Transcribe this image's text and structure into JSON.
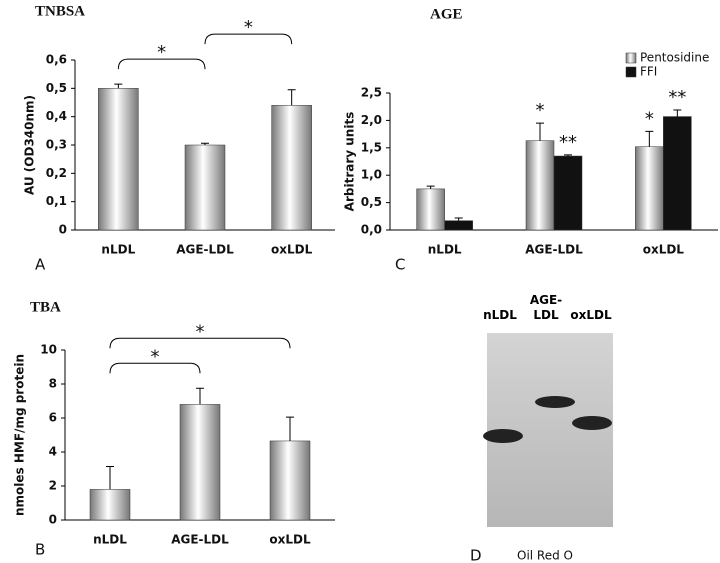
{
  "chart_data": [
    {
      "type": "bar",
      "title": "TNBSA",
      "panel": "A",
      "y_label": "AU (OD340nm)",
      "categories": [
        "nLDL",
        "AGE-LDL",
        "oxLDL"
      ],
      "values": [
        0.5,
        0.3,
        0.44
      ],
      "errors": [
        0.015,
        0.006,
        0.055
      ],
      "color": "#777777",
      "ylim": [
        0,
        0.6
      ],
      "yticks": [
        0,
        {
          "value": 0.1,
          "label": "0,1"
        },
        {
          "value": 0.2,
          "label": "0,2"
        },
        {
          "value": 0.3,
          "label": "0,3"
        },
        {
          "value": 0.4,
          "label": "0,4"
        },
        {
          "value": 0.5,
          "label": "0,5"
        },
        {
          "value": 0.6,
          "label": "0,6"
        }
      ],
      "brackets": [
        {
          "from": 0,
          "to": 1,
          "label": "*"
        },
        {
          "from": 1,
          "to": 2,
          "label": "*"
        }
      ]
    },
    {
      "type": "bar",
      "title": "AGE",
      "panel": "C",
      "y_label": "Arbitrary units",
      "categories": [
        "nLDL",
        "AGE-LDL",
        "oxLDL"
      ],
      "series": [
        {
          "name": "Pentosidine",
          "color": "#777777",
          "values": [
            0.75,
            1.63,
            1.52
          ],
          "errors": [
            0.05,
            0.32,
            0.28
          ],
          "annotations": [
            null,
            "*",
            "*"
          ]
        },
        {
          "name": "FFI",
          "color": "#111111",
          "values": [
            0.17,
            1.35,
            2.07
          ],
          "errors": [
            0.05,
            0.02,
            0.12
          ],
          "annotations": [
            null,
            "**",
            "**"
          ]
        }
      ],
      "legend": "top-right",
      "ylim": [
        0,
        2.5
      ],
      "yticks": [
        {
          "value": 0,
          "label": "0,0"
        },
        {
          "value": 0.5,
          "label": "0,5"
        },
        {
          "value": 1,
          "label": "1,0"
        },
        {
          "value": 1.5,
          "label": "1,5"
        },
        {
          "value": 2,
          "label": "2,0"
        },
        {
          "value": 2.5,
          "label": "2,5"
        }
      ]
    },
    {
      "type": "bar",
      "title": "TBA",
      "panel": "B",
      "y_label": "nmoles HMF/mg protein",
      "categories": [
        "nLDL",
        "AGE-LDL",
        "oxLDL"
      ],
      "values": [
        1.8,
        6.8,
        4.65
      ],
      "errors": [
        1.35,
        0.95,
        1.4
      ],
      "color": "#777777",
      "ylim": [
        0,
        10
      ],
      "yticks": [
        0,
        2,
        4,
        6,
        8,
        10
      ],
      "brackets": [
        {
          "from": 0,
          "to": 1,
          "label": "*"
        },
        {
          "from": 0,
          "to": 2,
          "label": "*"
        }
      ]
    }
  ],
  "gel": {
    "panel": "D",
    "lanes": [
      "nLDL",
      "AGE-\nLDL",
      "oxLDL"
    ],
    "caption": "Oil Red O"
  }
}
